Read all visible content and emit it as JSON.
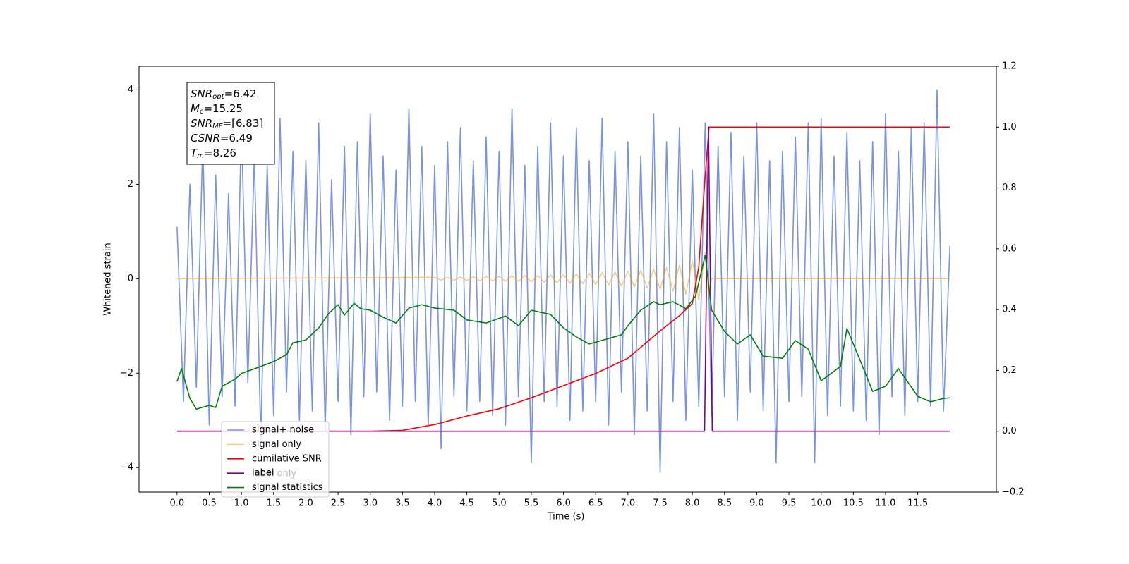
{
  "chart_data": {
    "type": "line",
    "xlabel": "Time (s)",
    "ylabel": "Whitened strain",
    "xlim": [
      -0.59,
      12.72
    ],
    "ylim": [
      -4.52,
      4.5
    ],
    "y2lim": [
      -0.2,
      1.2
    ],
    "xticks": [
      {
        "value": 0,
        "label": "0.0"
      },
      0.5,
      {
        "value": 1,
        "label": "1.0"
      },
      1.5,
      {
        "value": 2,
        "label": "2.0"
      },
      2.5,
      {
        "value": 3,
        "label": "3.0"
      },
      3.5,
      {
        "value": 4,
        "label": "4.0"
      },
      4.5,
      {
        "value": 5,
        "label": "5.0"
      },
      5.5,
      {
        "value": 6,
        "label": "6.0"
      },
      6.5,
      {
        "value": 7,
        "label": "7.0"
      },
      7.5,
      {
        "value": 8,
        "label": "8.0"
      },
      8.5,
      {
        "value": 9,
        "label": "9.0"
      },
      9.5,
      {
        "value": 10,
        "label": "10.0"
      },
      10.5,
      {
        "value": 11,
        "label": "11.0"
      },
      11.5
    ],
    "yticks": [
      {
        "value": -4,
        "label": "−4"
      },
      {
        "value": -2,
        "label": "−2"
      },
      0,
      2,
      4
    ],
    "y2ticks": [
      {
        "value": -0.2,
        "label": "−0.2"
      },
      {
        "value": 0,
        "label": "0.0"
      },
      0.2,
      0.4,
      0.6,
      0.8,
      {
        "value": 1,
        "label": "1.0"
      },
      1.2
    ],
    "grid": false,
    "legend": "lower left",
    "overlapped_legend_label": "label only",
    "annotations": [
      {
        "name": "SNR",
        "sub": "opt",
        "text": "=6.42"
      },
      {
        "name": "M",
        "sub": "c",
        "text": "=15.25"
      },
      {
        "name": "SNR",
        "sub": "MF",
        "text": "=[6.83]"
      },
      {
        "name": "CSNR",
        "text": "=6.49"
      },
      {
        "name": "T",
        "sub": "m",
        "text": "=8.26"
      }
    ],
    "series": [
      {
        "name": "signal+ noise",
        "color": "#6f8de6",
        "axis": "y",
        "x": [
          0,
          0.1,
          0.2,
          0.3,
          0.4,
          0.5,
          0.6,
          0.7,
          0.8,
          0.9,
          1,
          1.1,
          1.2,
          1.3,
          1.4,
          1.5,
          1.6,
          1.7,
          1.8,
          1.9,
          2,
          2.1,
          2.2,
          2.3,
          2.4,
          2.5,
          2.6,
          2.7,
          2.8,
          2.9,
          3,
          3.1,
          3.2,
          3.3,
          3.4,
          3.5,
          3.6,
          3.7,
          3.8,
          3.9,
          4,
          4.1,
          4.2,
          4.3,
          4.4,
          4.5,
          4.6,
          4.7,
          4.8,
          4.9,
          5,
          5.1,
          5.2,
          5.3,
          5.4,
          5.5,
          5.6,
          5.7,
          5.8,
          5.9,
          6,
          6.1,
          6.2,
          6.3,
          6.4,
          6.5,
          6.6,
          6.7,
          6.8,
          6.9,
          7,
          7.1,
          7.2,
          7.3,
          7.4,
          7.5,
          7.6,
          7.7,
          7.8,
          7.9,
          8,
          8.1,
          8.2,
          8.3,
          8.4,
          8.5,
          8.6,
          8.7,
          8.8,
          8.9,
          9,
          9.1,
          9.2,
          9.3,
          9.4,
          9.5,
          9.6,
          9.7,
          9.8,
          9.9,
          10,
          10.1,
          10.2,
          10.3,
          10.4,
          10.5,
          10.6,
          10.7,
          10.8,
          10.9,
          11,
          11.1,
          11.2,
          11.3,
          11.4,
          11.5,
          11.6,
          11.7,
          11.8,
          11.9,
          12
        ],
        "values": [
          1.1,
          -2.6,
          2.0,
          -2.3,
          2.9,
          -3.1,
          2.2,
          -2.5,
          1.8,
          -2.7,
          3.3,
          -2.2,
          2.6,
          -3.4,
          2.4,
          -2.9,
          3.4,
          -2.4,
          2.7,
          -3.0,
          2.5,
          -2.8,
          3.3,
          -3.2,
          2.1,
          -2.6,
          2.8,
          -3.3,
          2.9,
          -2.5,
          3.5,
          -2.4,
          2.6,
          -3.0,
          2.3,
          -2.7,
          3.6,
          -2.6,
          2.8,
          -3.1,
          2.4,
          -3.6,
          2.9,
          -2.5,
          3.2,
          -2.8,
          2.5,
          -2.6,
          3.0,
          -2.9,
          2.7,
          -3.1,
          3.6,
          -2.5,
          2.4,
          -3.9,
          2.8,
          -2.6,
          3.3,
          -2.7,
          2.6,
          -3.0,
          3.2,
          -2.8,
          2.5,
          -2.6,
          3.4,
          -3.1,
          2.7,
          -2.4,
          2.9,
          -3.3,
          2.6,
          -2.8,
          3.5,
          -4.1,
          2.9,
          -2.6,
          3.2,
          -3.0,
          2.3,
          -2.7,
          3.3,
          -2.9,
          2.8,
          -2.5,
          3.1,
          -3.0,
          2.6,
          -2.4,
          3.3,
          -2.8,
          2.5,
          -3.9,
          2.7,
          -2.6,
          3.0,
          -2.5,
          3.3,
          -3.9,
          3.4,
          -2.9,
          2.6,
          -2.7,
          3.1,
          -2.8,
          2.5,
          -3.0,
          2.9,
          -3.3,
          3.5,
          -2.5,
          2.7,
          -2.9,
          3.2,
          -2.6,
          3.3,
          -2.7,
          4.0,
          -2.8,
          0.7
        ]
      },
      {
        "name": "signal only",
        "color": "#ffa500",
        "axis": "y",
        "x": [
          0,
          4.0,
          4.1,
          4.2,
          4.3,
          4.4,
          4.5,
          4.6,
          4.7,
          4.8,
          4.9,
          5.0,
          5.1,
          5.2,
          5.3,
          5.4,
          5.5,
          5.6,
          5.7,
          5.8,
          5.9,
          6.0,
          6.1,
          6.2,
          6.3,
          6.4,
          6.5,
          6.6,
          6.7,
          6.8,
          6.9,
          7.0,
          7.1,
          7.2,
          7.3,
          7.4,
          7.5,
          7.6,
          7.7,
          7.8,
          7.9,
          8.0,
          8.1,
          8.2,
          8.25,
          8.3,
          12
        ],
        "values": [
          0,
          0.03,
          -0.03,
          0.03,
          -0.035,
          0.035,
          -0.04,
          0.04,
          -0.045,
          0.045,
          -0.05,
          0.05,
          -0.055,
          0.06,
          -0.06,
          0.065,
          -0.07,
          0.07,
          -0.075,
          0.08,
          -0.085,
          0.09,
          -0.095,
          0.1,
          -0.105,
          0.11,
          -0.12,
          0.125,
          -0.13,
          0.14,
          -0.15,
          0.16,
          -0.17,
          0.18,
          -0.19,
          0.2,
          -0.22,
          0.24,
          -0.26,
          0.29,
          -0.33,
          0.38,
          -0.45,
          0.55,
          -0.3,
          0,
          0
        ]
      },
      {
        "name": "cumilative SNR",
        "color": "red",
        "axis": "y2",
        "x": [
          0,
          3.0,
          3.5,
          4.0,
          4.5,
          5.0,
          5.5,
          6.0,
          6.5,
          7.0,
          7.5,
          7.8,
          8.0,
          8.1,
          8.2,
          8.26,
          12
        ],
        "values": [
          0,
          0,
          0.003,
          0.022,
          0.05,
          0.074,
          0.11,
          0.15,
          0.19,
          0.24,
          0.33,
          0.38,
          0.42,
          0.54,
          0.84,
          1.0,
          1.0
        ]
      },
      {
        "name": "label",
        "color": "purple",
        "axis": "y2",
        "x": [
          0,
          8.19,
          8.25,
          8.31,
          12
        ],
        "values": [
          0,
          0,
          1,
          0,
          0
        ]
      },
      {
        "name": "signal statistics",
        "color": "green",
        "axis": "y2",
        "x": [
          0,
          0.07,
          0.2,
          0.3,
          0.5,
          0.6,
          0.7,
          0.9,
          1.0,
          1.3,
          1.5,
          1.7,
          1.8,
          2.0,
          2.2,
          2.35,
          2.5,
          2.6,
          2.75,
          2.85,
          3.0,
          3.2,
          3.4,
          3.6,
          3.8,
          4.0,
          4.3,
          4.5,
          4.8,
          5.1,
          5.3,
          5.5,
          5.8,
          6.0,
          6.2,
          6.4,
          6.7,
          6.9,
          7.0,
          7.2,
          7.4,
          7.5,
          7.7,
          7.9,
          8.05,
          8.2,
          8.3,
          8.5,
          8.7,
          8.9,
          9.1,
          9.4,
          9.6,
          9.8,
          10.0,
          10.3,
          10.4,
          10.6,
          10.8,
          11.0,
          11.2,
          11.5,
          11.7,
          11.9,
          12.0
        ],
        "values": [
          0.164,
          0.206,
          0.108,
          0.073,
          0.085,
          0.078,
          0.148,
          0.171,
          0.19,
          0.213,
          0.229,
          0.252,
          0.291,
          0.3,
          0.34,
          0.386,
          0.416,
          0.382,
          0.421,
          0.403,
          0.398,
          0.375,
          0.356,
          0.405,
          0.416,
          0.405,
          0.398,
          0.366,
          0.356,
          0.379,
          0.347,
          0.398,
          0.384,
          0.34,
          0.31,
          0.287,
          0.305,
          0.317,
          0.347,
          0.398,
          0.426,
          0.416,
          0.426,
          0.403,
          0.444,
          0.579,
          0.398,
          0.328,
          0.287,
          0.317,
          0.247,
          0.24,
          0.298,
          0.27,
          0.166,
          0.213,
          0.338,
          0.236,
          0.131,
          0.148,
          0.206,
          0.115,
          0.097,
          0.108,
          0.11
        ]
      }
    ]
  }
}
